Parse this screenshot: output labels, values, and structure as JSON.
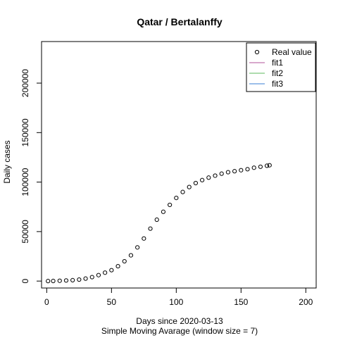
{
  "chart_data": {
    "type": "scatter",
    "title": "Qatar / Bertalanffy",
    "xlabel": "Days since 2020-03-13",
    "xlabel2": "Simple Moving Avarage (window size = 7)",
    "ylabel": "Daily cases",
    "xlim": [
      -4,
      208
    ],
    "ylim": [
      -7000,
      242000
    ],
    "x_ticks": [
      0,
      50,
      100,
      150,
      200
    ],
    "y_ticks": [
      0,
      50000,
      100000,
      150000,
      200000
    ],
    "x_tick_labels": [
      "0",
      "50",
      "100",
      "150",
      "200"
    ],
    "y_tick_labels": [
      "0",
      "50000",
      "100000",
      "150000",
      "200000"
    ],
    "legend": {
      "position": "top-right",
      "entries": [
        {
          "label": "Real value",
          "symbol": "circle",
          "color": "#000000"
        },
        {
          "label": "fit1",
          "symbol": "line",
          "color": "#b0509a"
        },
        {
          "label": "fit2",
          "symbol": "line",
          "color": "#5cb85c"
        },
        {
          "label": "fit3",
          "symbol": "line",
          "color": "#3a7fd5"
        }
      ]
    },
    "series": [
      {
        "name": "Real value",
        "marker": "open-circle",
        "x": [
          1,
          5,
          10,
          15,
          20,
          25,
          30,
          35,
          40,
          45,
          50,
          55,
          60,
          65,
          70,
          75,
          80,
          85,
          90,
          95,
          100,
          105,
          110,
          115,
          120,
          125,
          130,
          135,
          140,
          145,
          150,
          155,
          160,
          165,
          170,
          172
        ],
        "y": [
          0,
          100,
          300,
          600,
          900,
          1500,
          2500,
          4000,
          6000,
          8500,
          11000,
          15000,
          20000,
          26000,
          34000,
          43000,
          53000,
          62000,
          70000,
          77000,
          84000,
          90000,
          95000,
          99000,
          102000,
          104500,
          106500,
          108500,
          110000,
          111000,
          112000,
          113000,
          114500,
          115500,
          116500,
          117000
        ]
      }
    ]
  }
}
